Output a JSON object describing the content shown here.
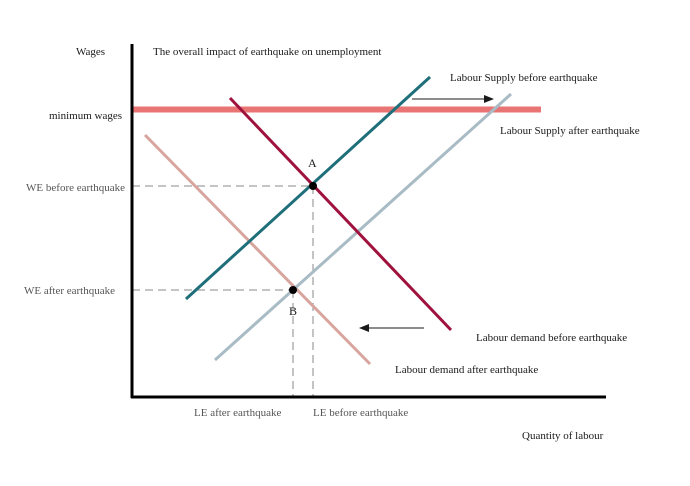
{
  "title": "The overall impact of earthquake on unemployment",
  "axes": {
    "y_label": "Wages",
    "x_label": "Quantity of labour"
  },
  "minimum_wage": {
    "label": "minimum wages",
    "color": "#e87474"
  },
  "curves": {
    "supply_before": {
      "label": "Labour Supply before earthquake",
      "color": "#1f6f7a"
    },
    "supply_after": {
      "label": "Labour Supply after earthquake",
      "color": "#a9bcc5"
    },
    "demand_before": {
      "label": "Labour demand before earthquake",
      "color": "#a0123e"
    },
    "demand_after": {
      "label": "Labour demand after earthquake",
      "color": "#d8a59e"
    }
  },
  "equilibria": {
    "a": {
      "point_label": "A",
      "wage_label": "WE before earthquake",
      "quantity_label": "LE before earthquake"
    },
    "b": {
      "point_label": "B",
      "wage_label": "WE after earthquake",
      "quantity_label": "LE after earthquake"
    }
  },
  "shift_arrows": [
    {
      "name": "supply-shift-arrow",
      "direction": "right"
    },
    {
      "name": "demand-shift-arrow",
      "direction": "left"
    }
  ]
}
